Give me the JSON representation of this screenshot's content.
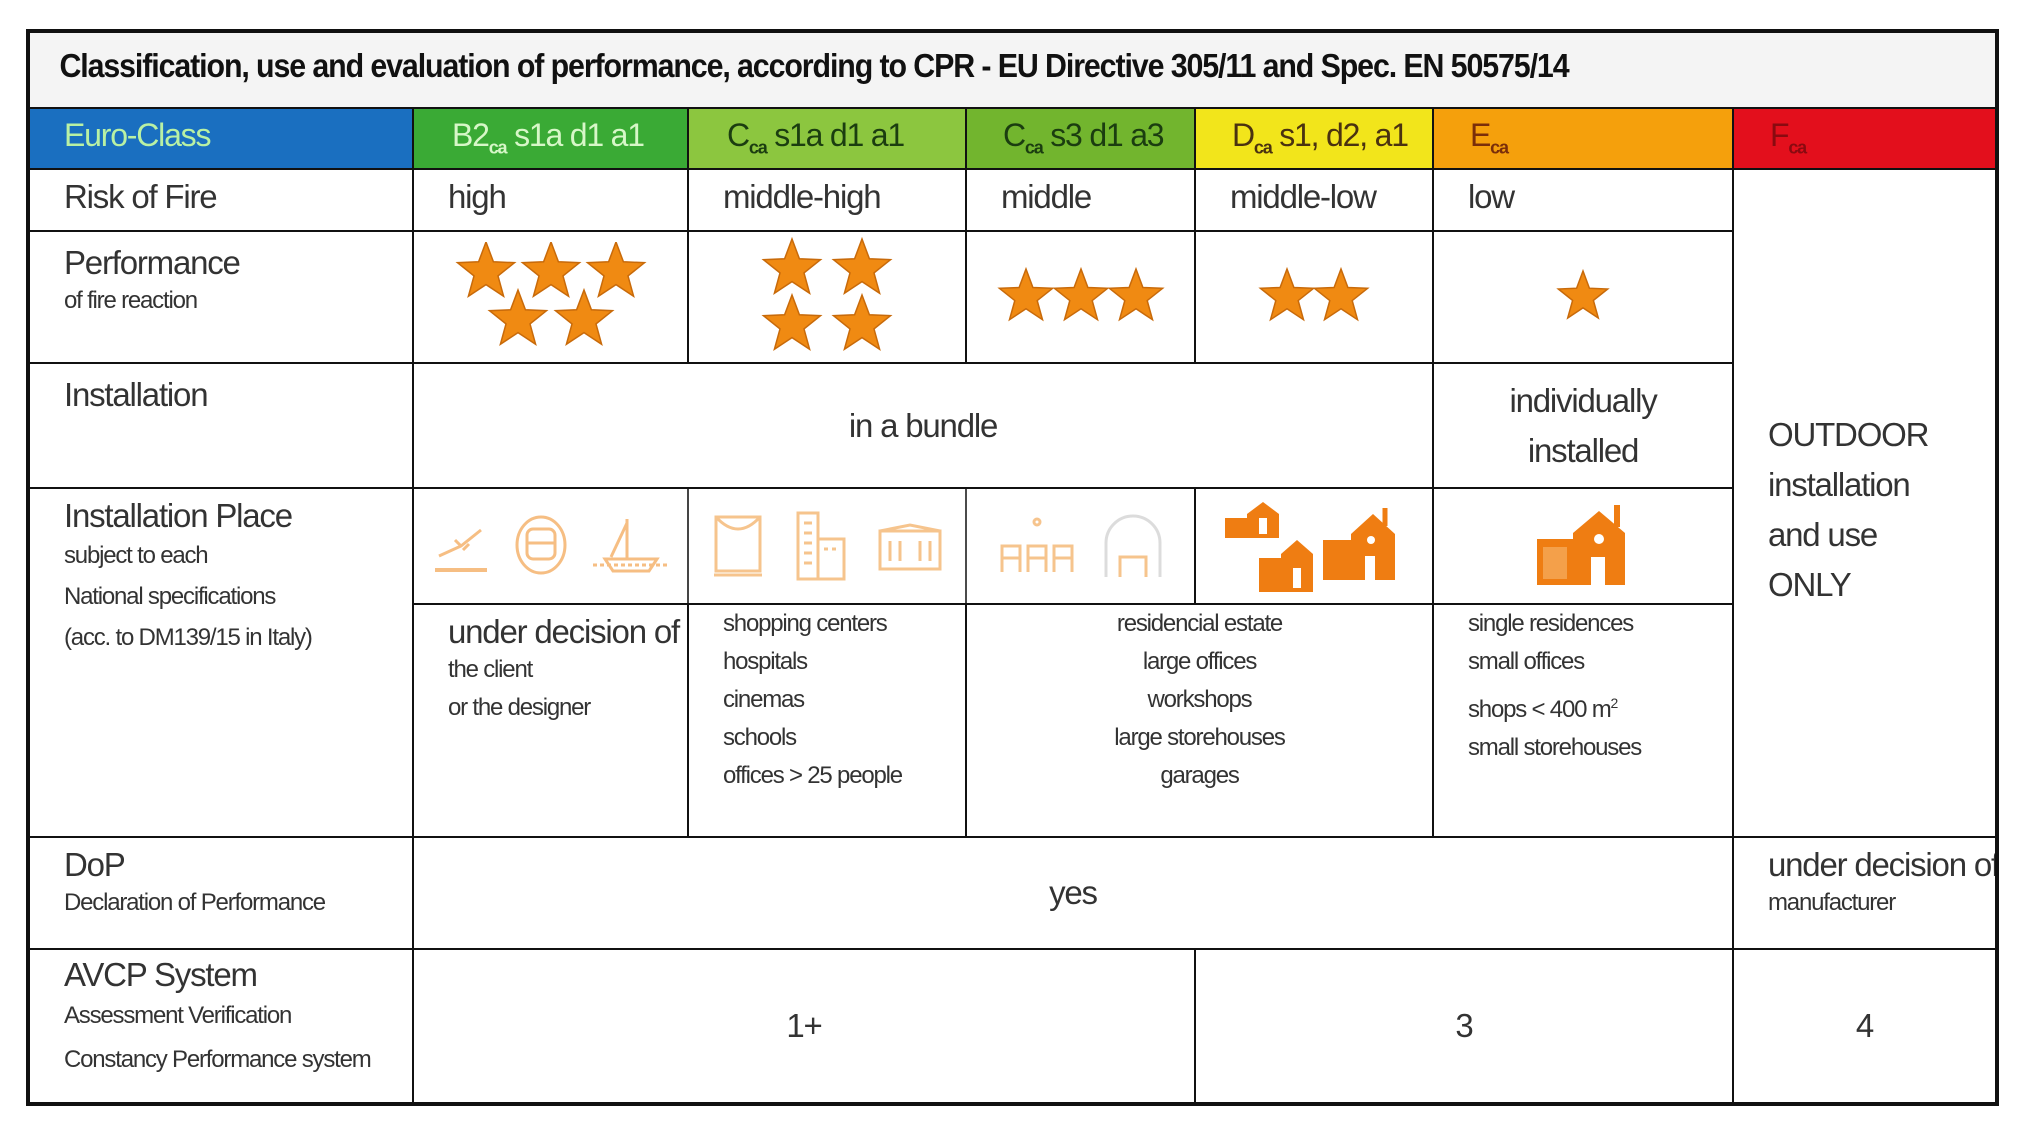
{
  "title": "Classification, use and evaluation of performance, according to CPR - EU Directive 305/11 and Spec. EN 50575/14",
  "colors": {
    "euro_class": "#1a6fc0",
    "B2ca": "#3aaa35",
    "Cca_s1a": "#8cc63f",
    "Cca_s3": "#72b52e",
    "Dca": "#f2e51b",
    "Eca": "#f5a00c",
    "Fca": "#e30f1c",
    "star": "#f08a12",
    "icon": "#ef8a1e"
  },
  "header": {
    "label": "Euro-Class",
    "classes": [
      {
        "main": "B2",
        "sub": "ca",
        "rest": " s1a d1 a1"
      },
      {
        "main": "C",
        "sub": "ca",
        "rest": " s1a d1 a1"
      },
      {
        "main": "C",
        "sub": "ca",
        "rest": " s3 d1 a3"
      },
      {
        "main": "D",
        "sub": "ca",
        "rest": " s1, d2, a1"
      },
      {
        "main": "E",
        "sub": "ca",
        "rest": ""
      },
      {
        "main": "F",
        "sub": "ca",
        "rest": ""
      }
    ]
  },
  "risk": {
    "label": "Risk of Fire",
    "values": [
      "high",
      "middle-high",
      "middle",
      "middle-low",
      "low"
    ]
  },
  "performance": {
    "label": "Performance",
    "sublabel": "of fire reaction",
    "stars": [
      5,
      4,
      3,
      2,
      1
    ]
  },
  "installation": {
    "label": "Installation",
    "bundle": "in a bundle",
    "individual_line1": "individually",
    "individual_line2": "installed"
  },
  "outdoor": [
    "OUTDOOR",
    "installation",
    "and use",
    "ONLY"
  ],
  "place": {
    "label": "Installation Place",
    "sub": [
      "subject to each",
      "National specifications",
      "(acc. to DM139/15 in Italy)"
    ],
    "icons": [
      [
        "airport-icon",
        "metro-train-icon",
        "ship-icon"
      ],
      [
        "theatre-icon",
        "office-tower-icon",
        "school-building-icon"
      ],
      [
        "auditorium-seats-icon",
        "arched-hall-icon"
      ],
      [
        "houses-cluster-icon"
      ],
      [
        "single-house-icon"
      ]
    ],
    "b2": {
      "title": "under decision of",
      "lines": [
        "the client",
        "or the designer"
      ]
    },
    "cca1": [
      "shopping centers",
      "hospitals",
      "cinemas",
      "schools",
      "offices > 25 people"
    ],
    "cca3_dca": [
      "residencial estate",
      "large offices",
      "workshops",
      "large storehouses",
      "garages"
    ],
    "eca": [
      "single residences",
      "small offices",
      "shops < 400 m",
      "small storehouses"
    ],
    "eca_sup": "2"
  },
  "dop": {
    "label": "DoP",
    "sublabel": "Declaration of Performance",
    "value": "yes",
    "f_title": "under decision of",
    "f_sub": "manufacturer"
  },
  "avcp": {
    "label": "AVCP System",
    "sub1": "Assessment Verification",
    "sub2": "Constancy Performance system",
    "v1": "1+",
    "v3": "3",
    "v4": "4"
  }
}
